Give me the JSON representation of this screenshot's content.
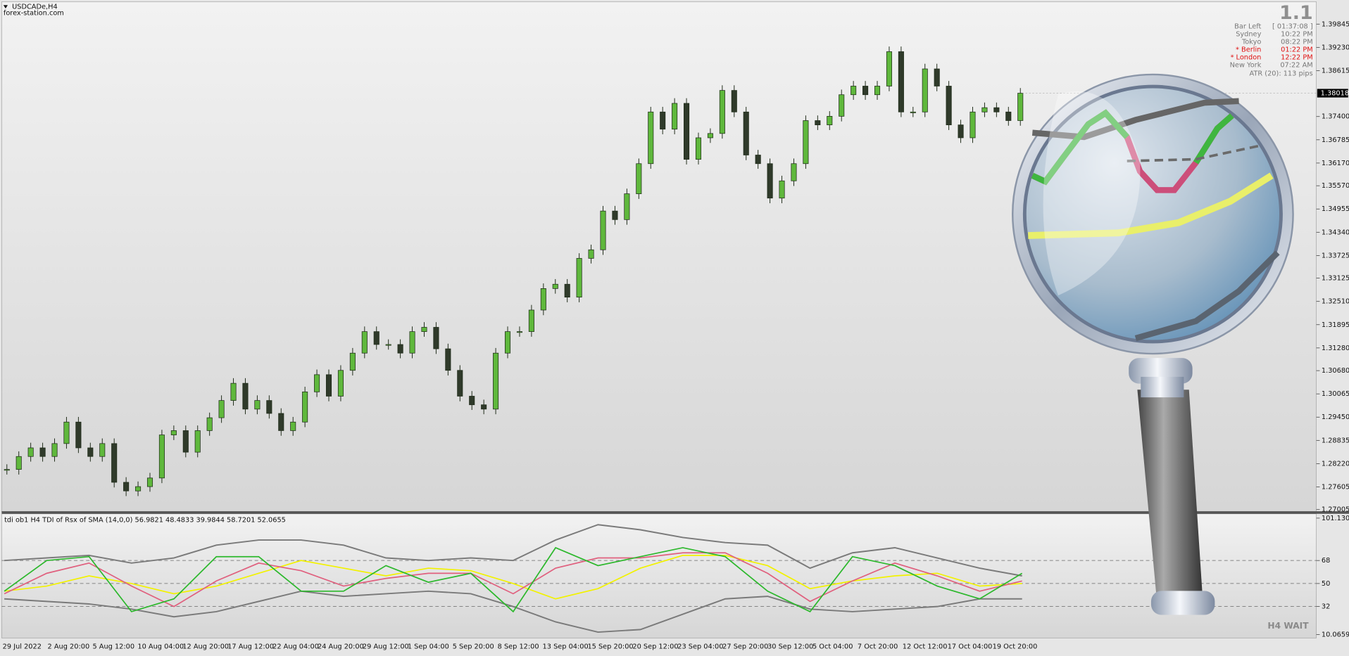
{
  "chart_data": [
    {
      "type": "candlestick",
      "title": "USDCADe,H4",
      "subtitle": "forex-station.com",
      "x_labels": [
        "29 Jul 2022",
        "2 Aug 20:00",
        "5 Aug 12:00",
        "10 Aug 04:00",
        "12 Aug 20:00",
        "17 Aug 12:00",
        "22 Aug 04:00",
        "24 Aug 20:00",
        "29 Aug 12:00",
        "1 Sep 04:00",
        "5 Sep 20:00",
        "8 Sep 12:00",
        "13 Sep 04:00",
        "15 Sep 20:00",
        "20 Sep 12:00",
        "23 Sep 04:00",
        "27 Sep 20:00",
        "30 Sep 12:00",
        "5 Oct 04:00",
        "7 Oct 20:00",
        "12 Oct 12:00",
        "17 Oct 04:00",
        "19 Oct 20:00"
      ],
      "close": [
        1.28067,
        1.28409,
        1.28637,
        1.28409,
        1.28751,
        1.2932,
        1.28637,
        1.28409,
        1.28751,
        1.27726,
        1.27498,
        1.27612,
        1.2784,
        1.28979,
        1.29093,
        1.28523,
        1.29093,
        1.29434,
        1.2989,
        1.30345,
        1.29662,
        1.2989,
        1.29548,
        1.29093,
        1.2932,
        1.30118,
        1.30573,
        1.30004,
        1.30687,
        1.31143,
        1.31712,
        1.31371,
        1.31371,
        1.31143,
        1.31712,
        1.31826,
        1.31257,
        1.30687,
        1.30004,
        1.29776,
        1.29662,
        1.31143,
        1.31712,
        1.31712,
        1.32282,
        1.32851,
        1.32965,
        1.32623,
        1.33649,
        1.33876,
        1.34901,
        1.34674,
        1.35357,
        1.36154,
        1.37521,
        1.37066,
        1.37749,
        1.36268,
        1.36838,
        1.36952,
        1.38091,
        1.37521,
        1.36382,
        1.36154,
        1.35243,
        1.35699,
        1.36154,
        1.37293,
        1.37179,
        1.37407,
        1.37977,
        1.38205,
        1.37977,
        1.38205,
        1.39116,
        1.37521,
        1.37521,
        1.3866,
        1.38205,
        1.37179,
        1.36838,
        1.37521,
        1.37635,
        1.37521,
        1.37293,
        1.38018
      ],
      "up_color": "#5fb83c",
      "down_color": "#2f3a2a",
      "current_price": 1.38018,
      "ylim": [
        1.2696,
        1.40437
      ],
      "yticks": [
        1.39845,
        {
          "value": 1.3923,
          "label": "1.39230"
        },
        1.38615,
        {
          "value": 1.374,
          "label": "1.37400"
        },
        1.36785,
        {
          "value": 1.3617,
          "label": "1.36170"
        },
        {
          "value": 1.3557,
          "label": "1.35570"
        },
        1.34955,
        {
          "value": 1.3434,
          "label": "1.34340"
        },
        1.33725,
        1.33125,
        {
          "value": 1.3251,
          "label": "1.32510"
        },
        1.31895,
        {
          "value": 1.3128,
          "label": "1.31280"
        },
        {
          "value": 1.3068,
          "label": "1.30680"
        },
        1.30065,
        {
          "value": 1.2945,
          "label": "1.29450"
        },
        1.28835,
        {
          "value": 1.2822,
          "label": "1.28220"
        },
        1.27605,
        1.27005
      ]
    },
    {
      "type": "line",
      "title": "tdi ob1 H4 TDI of Rsx of SMA (14,0,0) 56.9821 48.4833 39.9844 58.7201 52.0655",
      "series": [
        {
          "color": "#7a7a7a",
          "values": [
            68,
            70,
            72,
            66,
            70,
            80,
            84,
            84,
            80,
            70,
            68,
            70,
            68,
            84,
            96,
            92,
            86,
            82,
            80,
            62,
            74,
            78,
            70,
            62,
            56
          ]
        },
        {
          "color": "#7a7a7a",
          "values": [
            38,
            36,
            34,
            30,
            24,
            28,
            36,
            44,
            40,
            42,
            44,
            42,
            32,
            20,
            12,
            14,
            26,
            38,
            40,
            30,
            28,
            30,
            32,
            38,
            38
          ]
        },
        {
          "color": "#f2f200",
          "values": [
            44,
            48,
            56,
            50,
            42,
            48,
            58,
            68,
            62,
            56,
            62,
            60,
            50,
            38,
            46,
            62,
            72,
            72,
            64,
            46,
            52,
            56,
            58,
            48,
            50
          ]
        },
        {
          "color": "#e0607e",
          "values": [
            42,
            58,
            66,
            48,
            32,
            52,
            66,
            60,
            48,
            54,
            58,
            58,
            42,
            62,
            70,
            70,
            74,
            74,
            58,
            36,
            52,
            66,
            56,
            44,
            52
          ]
        },
        {
          "color": "#2cb82c",
          "values": [
            44,
            68,
            71,
            28,
            38,
            71,
            71,
            44,
            44,
            64,
            51,
            58,
            28,
            78,
            64,
            71,
            78,
            71,
            44,
            28,
            71,
            64,
            48,
            38,
            58
          ]
        }
      ],
      "levels": [
        32,
        50,
        68
      ],
      "ylim": [
        7.39,
        104.48
      ],
      "yticks": [
        101.1306,
        68,
        50,
        32,
        10.0659
      ]
    }
  ],
  "info_panel": {
    "version": "1.1",
    "rows": [
      [
        "Bar Left",
        "[ 01:37:08 ]"
      ],
      [
        "Sydney",
        "10:22 PM"
      ],
      [
        "Tokyo",
        "08:22 PM"
      ],
      [
        "* Berlin",
        "01:22 PM"
      ],
      [
        "* London",
        "12:22 PM"
      ],
      [
        "New York",
        "07:22 AM"
      ]
    ],
    "atr": "ATR (20): 113 pips"
  },
  "status": "H4 WAIT"
}
